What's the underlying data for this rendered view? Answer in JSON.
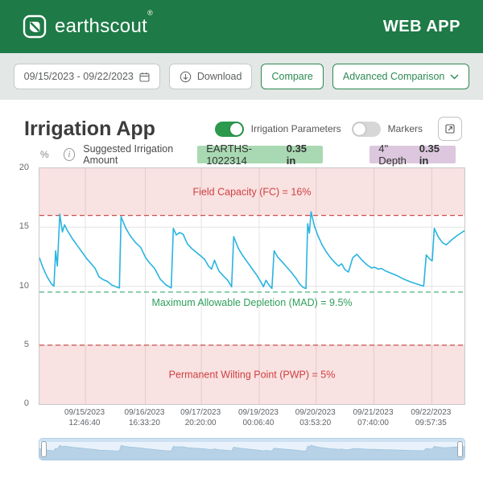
{
  "header": {
    "brand": "earthscout",
    "brand_mark": "®",
    "app_label": "WEB APP",
    "brand_color": "#1e7a47"
  },
  "toolbar": {
    "date_range": "09/15/2023 - 09/22/2023",
    "download_label": "Download",
    "compare_label": "Compare",
    "advanced_label": "Advanced Comparison",
    "accent_color": "#2c8a52"
  },
  "panel": {
    "title": "Irrigation App",
    "toggles": [
      {
        "label": "Irrigation Parameters",
        "state": "on"
      },
      {
        "label": "Markers",
        "state": "off"
      }
    ],
    "toggle_on_color": "#2b9a4c",
    "unit_label": "%",
    "suggested_label": "Suggested Irrigation Amount",
    "badges": [
      {
        "name": "EARTHS-1022314",
        "value": "0.35 in",
        "bg": "#a9d9b2"
      },
      {
        "name": "4\" Depth",
        "value": "0.35 in",
        "bg": "#dcc7de"
      }
    ]
  },
  "chart_data": {
    "type": "line",
    "title": "Suggested Irrigation Amount",
    "ylabel": "%",
    "ylim": [
      0,
      20
    ],
    "yticks": [
      0,
      5,
      10,
      15,
      20
    ],
    "grid": true,
    "legend_position": "none",
    "xticks": [
      {
        "frac": 0.108,
        "date": "09/15/2023",
        "time": "12:46:40"
      },
      {
        "frac": 0.249,
        "date": "09/16/2023",
        "time": "16:33:20"
      },
      {
        "frac": 0.381,
        "date": "09/17/2023",
        "time": "20:20:00"
      },
      {
        "frac": 0.517,
        "date": "09/19/2023",
        "time": "00:06:40"
      },
      {
        "frac": 0.651,
        "date": "09/20/2023",
        "time": "03:53:20"
      },
      {
        "frac": 0.787,
        "date": "09/21/2023",
        "time": "07:40:00"
      },
      {
        "frac": 0.923,
        "date": "09/22/2023",
        "time": "09:57:35"
      }
    ],
    "thresholds": [
      {
        "id": "fc",
        "label": "Field Capacity (FC) = 16%",
        "value": 16,
        "band": [
          16,
          20
        ],
        "color": "#cf3f3f",
        "line_color": "#c9504e",
        "band_color": "rgba(224,92,92,0.18)"
      },
      {
        "id": "mad",
        "label": "Maximum Allowable Depletion (MAD) = 9.5%",
        "value": 9.5,
        "color": "#2e9e5b",
        "line_color": "#5bb98b"
      },
      {
        "id": "pwp",
        "label": "Permanent Wilting Point (PWP) = 5%",
        "value": 5,
        "band": [
          0,
          5
        ],
        "color": "#cf3f3f",
        "line_color": "#c9504e",
        "band_color": "rgba(224,92,92,0.18)"
      }
    ],
    "series": [
      {
        "name": "EARTHS-1022314",
        "color": "#29b4e0",
        "points": [
          [
            0,
            12.4
          ],
          [
            0.008,
            11.6
          ],
          [
            0.018,
            10.8
          ],
          [
            0.028,
            10.2
          ],
          [
            0.034,
            10.0
          ],
          [
            0.038,
            13.0
          ],
          [
            0.042,
            11.7
          ],
          [
            0.048,
            16.1
          ],
          [
            0.054,
            14.6
          ],
          [
            0.059,
            15.2
          ],
          [
            0.066,
            14.7
          ],
          [
            0.078,
            14.0
          ],
          [
            0.09,
            13.4
          ],
          [
            0.102,
            12.8
          ],
          [
            0.112,
            12.3
          ],
          [
            0.122,
            11.9
          ],
          [
            0.131,
            11.5
          ],
          [
            0.14,
            10.8
          ],
          [
            0.15,
            10.55
          ],
          [
            0.16,
            10.4
          ],
          [
            0.17,
            10.1
          ],
          [
            0.18,
            9.95
          ],
          [
            0.188,
            9.85
          ],
          [
            0.192,
            15.9
          ],
          [
            0.202,
            15.0
          ],
          [
            0.213,
            14.3
          ],
          [
            0.226,
            13.7
          ],
          [
            0.238,
            13.3
          ],
          [
            0.25,
            12.4
          ],
          [
            0.261,
            11.9
          ],
          [
            0.271,
            11.5
          ],
          [
            0.284,
            10.6
          ],
          [
            0.298,
            10.1
          ],
          [
            0.31,
            9.85
          ],
          [
            0.315,
            14.9
          ],
          [
            0.322,
            14.35
          ],
          [
            0.33,
            14.55
          ],
          [
            0.338,
            14.4
          ],
          [
            0.348,
            13.6
          ],
          [
            0.358,
            13.2
          ],
          [
            0.368,
            12.9
          ],
          [
            0.378,
            12.6
          ],
          [
            0.388,
            12.3
          ],
          [
            0.398,
            11.7
          ],
          [
            0.405,
            11.45
          ],
          [
            0.412,
            12.2
          ],
          [
            0.422,
            11.3
          ],
          [
            0.432,
            10.9
          ],
          [
            0.443,
            10.5
          ],
          [
            0.452,
            9.95
          ],
          [
            0.457,
            14.2
          ],
          [
            0.468,
            13.2
          ],
          [
            0.478,
            12.6
          ],
          [
            0.49,
            12.0
          ],
          [
            0.5,
            11.5
          ],
          [
            0.512,
            10.9
          ],
          [
            0.522,
            10.3
          ],
          [
            0.527,
            9.95
          ],
          [
            0.533,
            10.5
          ],
          [
            0.54,
            10.1
          ],
          [
            0.547,
            9.8
          ],
          [
            0.552,
            13.0
          ],
          [
            0.56,
            12.5
          ],
          [
            0.57,
            12.1
          ],
          [
            0.58,
            11.7
          ],
          [
            0.592,
            11.2
          ],
          [
            0.603,
            10.7
          ],
          [
            0.612,
            10.2
          ],
          [
            0.62,
            9.9
          ],
          [
            0.627,
            9.8
          ],
          [
            0.631,
            15.3
          ],
          [
            0.635,
            14.5
          ],
          [
            0.639,
            16.3
          ],
          [
            0.647,
            15.1
          ],
          [
            0.655,
            14.3
          ],
          [
            0.665,
            13.5
          ],
          [
            0.675,
            12.9
          ],
          [
            0.685,
            12.4
          ],
          [
            0.695,
            12.0
          ],
          [
            0.704,
            11.7
          ],
          [
            0.711,
            11.9
          ],
          [
            0.719,
            11.4
          ],
          [
            0.727,
            11.2
          ],
          [
            0.737,
            12.4
          ],
          [
            0.747,
            12.7
          ],
          [
            0.759,
            12.2
          ],
          [
            0.771,
            11.8
          ],
          [
            0.781,
            11.55
          ],
          [
            0.789,
            11.6
          ],
          [
            0.797,
            11.45
          ],
          [
            0.805,
            11.5
          ],
          [
            0.814,
            11.3
          ],
          [
            0.827,
            11.1
          ],
          [
            0.841,
            10.9
          ],
          [
            0.857,
            10.6
          ],
          [
            0.874,
            10.35
          ],
          [
            0.891,
            10.15
          ],
          [
            0.904,
            10.0
          ],
          [
            0.91,
            12.65
          ],
          [
            0.918,
            12.3
          ],
          [
            0.924,
            12.15
          ],
          [
            0.929,
            14.9
          ],
          [
            0.938,
            14.2
          ],
          [
            0.948,
            13.7
          ],
          [
            0.957,
            13.5
          ],
          [
            0.969,
            13.9
          ],
          [
            0.983,
            14.3
          ],
          [
            1,
            14.7
          ]
        ]
      }
    ]
  },
  "navigator": {
    "fill": "#b7d2e7",
    "stroke": "#9fc3dd"
  }
}
